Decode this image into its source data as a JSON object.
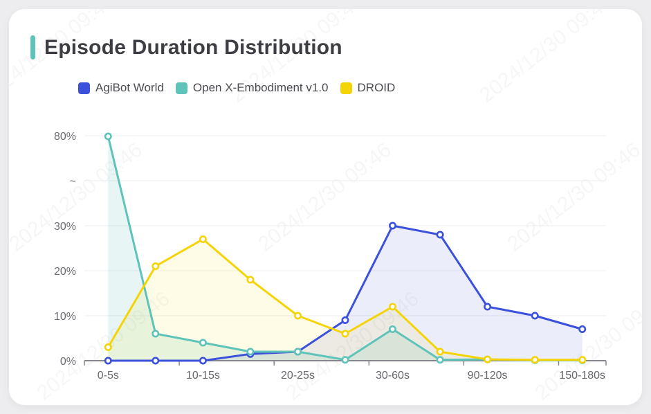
{
  "card": {
    "title": "Episode Duration Distribution",
    "accent_color": "#5fc3b8"
  },
  "legend": {
    "items": [
      {
        "label": "AgiBot World",
        "color": "#3c51db"
      },
      {
        "label": "Open X-Embodiment v1.0",
        "color": "#5ec3b8"
      },
      {
        "label": "DROID",
        "color": "#f5d407"
      }
    ]
  },
  "watermark": {
    "text": "2024/12/30 09:46"
  },
  "chart_data": {
    "type": "line",
    "title": "Episode Duration Distribution",
    "x_labels": [
      "0-5s",
      "",
      "10-15s",
      "",
      "20-25s",
      "",
      "30-60s",
      "",
      "90-120s",
      "",
      "150-180s"
    ],
    "y_tick_labels": [
      "0%",
      "10%",
      "20%",
      "30%",
      "~",
      "80%"
    ],
    "y_axis": {
      "unit": "%",
      "min": 0,
      "break_between": [
        30,
        80
      ],
      "break_symbol": "~"
    },
    "grid": true,
    "legend_position": "top-left",
    "series": [
      {
        "name": "AgiBot World",
        "color": "#3c51db",
        "area_fill": "rgba(60,81,219,0.10)",
        "values": [
          0,
          0,
          0,
          1.5,
          2,
          9,
          30,
          28,
          12,
          10,
          7
        ]
      },
      {
        "name": "Open X-Embodiment v1.0",
        "color": "#5ec3b8",
        "area_fill": "rgba(94,195,184,0.15)",
        "values": [
          79.6,
          6,
          4,
          2,
          2,
          0.2,
          7,
          0.2,
          0.3,
          0.1,
          0.1
        ]
      },
      {
        "name": "DROID",
        "color": "#f5d407",
        "area_fill": "rgba(245,212,7,0.10)",
        "values": [
          3,
          21,
          27,
          18,
          10,
          6,
          12,
          2,
          0.3,
          0.2,
          0.2
        ]
      }
    ]
  }
}
